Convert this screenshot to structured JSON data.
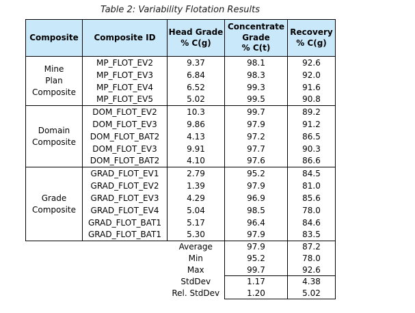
{
  "title": "Table 2: Variability Flotation Results",
  "theme": {
    "header_bg": "#c9e9fb",
    "border_color": "#000000",
    "text_color": "#000000"
  },
  "table": {
    "headers": [
      {
        "label": "Composite"
      },
      {
        "label": "Composite ID"
      },
      {
        "label": "Head Grade\n% C(g)"
      },
      {
        "label": "Concentrate\nGrade\n% C(t)"
      },
      {
        "label": "Recovery\n% C(g)"
      }
    ],
    "groups": [
      {
        "name": "Mine\nPlan\nComposite",
        "rows": [
          {
            "id": "MP_FLOT_EV2",
            "head_grade": "9.37",
            "concentrate_grade": "98.1",
            "recovery": "92.6"
          },
          {
            "id": "MP_FLOT_EV3",
            "head_grade": "6.84",
            "concentrate_grade": "98.3",
            "recovery": "92.0"
          },
          {
            "id": "MP_FLOT_EV4",
            "head_grade": "6.52",
            "concentrate_grade": "99.3",
            "recovery": "91.6"
          },
          {
            "id": "MP_FLOT_EV5",
            "head_grade": "5.02",
            "concentrate_grade": "99.5",
            "recovery": "90.8"
          }
        ]
      },
      {
        "name": "Domain\nComposite",
        "rows": [
          {
            "id": "DOM_FLOT_EV2",
            "head_grade": "10.3",
            "concentrate_grade": "99.7",
            "recovery": "89.2"
          },
          {
            "id": "DOM_FLOT_EV3",
            "head_grade": "9.86",
            "concentrate_grade": "97.9",
            "recovery": "91.2"
          },
          {
            "id": "DOM_FLOT_BAT2",
            "head_grade": "4.13",
            "concentrate_grade": "97.2",
            "recovery": "86.5"
          },
          {
            "id": "DOM_FLOT_EV3",
            "head_grade": "9.91",
            "concentrate_grade": "97.7",
            "recovery": "90.3"
          },
          {
            "id": "DOM_FLOT_BAT2",
            "head_grade": "4.10",
            "concentrate_grade": "97.6",
            "recovery": "86.6"
          }
        ]
      },
      {
        "name": "Grade\nComposite",
        "rows": [
          {
            "id": "GRAD_FLOT_EV1",
            "head_grade": "2.79",
            "concentrate_grade": "95.2",
            "recovery": "84.5"
          },
          {
            "id": "GRAD_FLOT_EV2",
            "head_grade": "1.39",
            "concentrate_grade": "97.9",
            "recovery": "81.0"
          },
          {
            "id": "GRAD_FLOT_EV3",
            "head_grade": "4.29",
            "concentrate_grade": "96.9",
            "recovery": "85.6"
          },
          {
            "id": "GRAD_FLOT_EV4",
            "head_grade": "5.04",
            "concentrate_grade": "98.5",
            "recovery": "78.0"
          },
          {
            "id": "GRAD_FLOT_BAT1",
            "head_grade": "5.17",
            "concentrate_grade": "96.4",
            "recovery": "84.6"
          },
          {
            "id": "GRAD_FLOT_BAT1",
            "head_grade": "5.30",
            "concentrate_grade": "97.9",
            "recovery": "83.5"
          }
        ]
      }
    ],
    "summary": {
      "stat_groups": [
        {
          "rows": [
            {
              "label": "Average",
              "concentrate_grade": "97.9",
              "recovery": "87.2"
            },
            {
              "label": "Min",
              "concentrate_grade": "95.2",
              "recovery": "78.0"
            },
            {
              "label": "Max",
              "concentrate_grade": "99.7",
              "recovery": "92.6"
            }
          ]
        },
        {
          "rows": [
            {
              "label": "StdDev",
              "concentrate_grade": "1.17",
              "recovery": "4.38"
            },
            {
              "label": "Rel. StdDev",
              "concentrate_grade": "1.20",
              "recovery": "5.02"
            }
          ]
        }
      ]
    }
  }
}
